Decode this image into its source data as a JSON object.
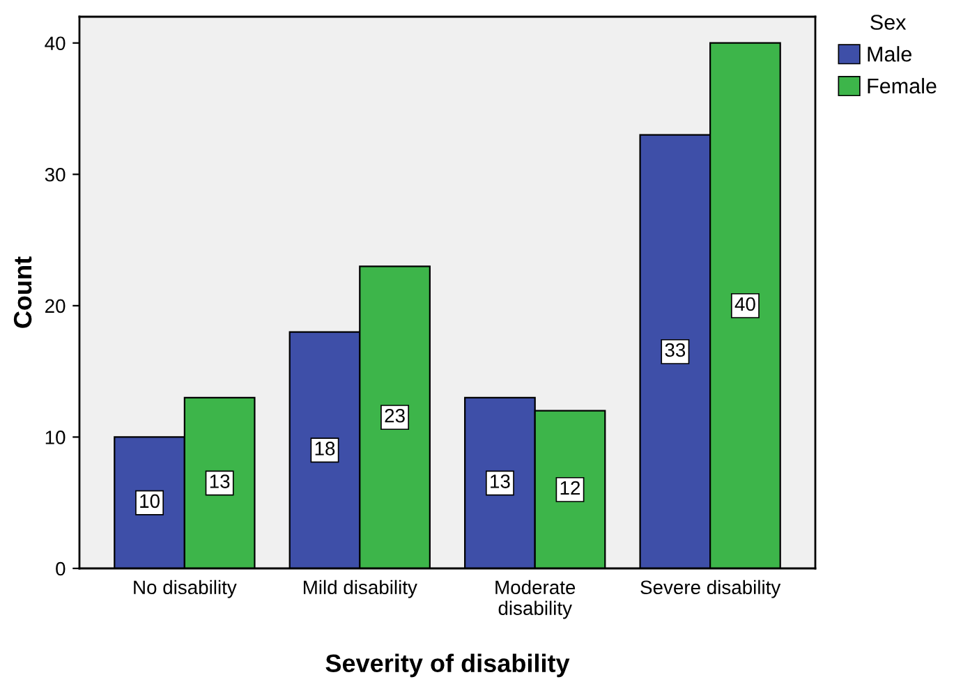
{
  "chart_data": {
    "type": "bar",
    "xlabel": "Severity of disability",
    "ylabel": "Count",
    "legend_title": "Sex",
    "categories": [
      "No disability",
      "Mild disability",
      "Moderate\ndisability",
      "Severe disability"
    ],
    "series": [
      {
        "name": "Male",
        "color": "#3e4fa8",
        "values": [
          10,
          18,
          13,
          33
        ]
      },
      {
        "name": "Female",
        "color": "#3db54a",
        "values": [
          13,
          23,
          12,
          40
        ]
      }
    ],
    "ylim": [
      0,
      42
    ],
    "yticks": [
      0,
      10,
      20,
      30,
      40
    ],
    "grid": false,
    "legend": "top right",
    "data_labels": true
  }
}
